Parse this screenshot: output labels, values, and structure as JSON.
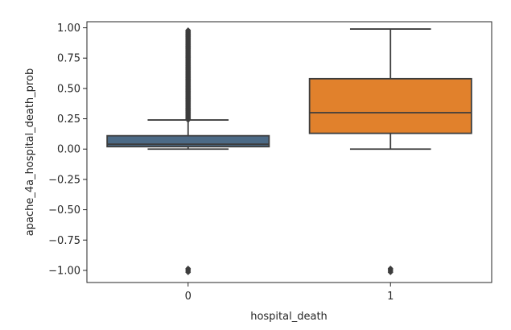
{
  "chart_data": {
    "type": "box",
    "title": "",
    "xlabel": "hospital_death",
    "ylabel": "apache_4a_hospital_death_prob",
    "categories": [
      "0",
      "1"
    ],
    "ylim": [
      -1.1,
      1.05
    ],
    "yticks": [
      -1.0,
      -0.75,
      -0.5,
      -0.25,
      0.0,
      0.25,
      0.5,
      0.75,
      1.0
    ],
    "ytick_labels": [
      "−1.00",
      "−0.75",
      "−0.50",
      "−0.25",
      "0.00",
      "0.25",
      "0.50",
      "0.75",
      "1.00"
    ],
    "grid": false,
    "boxes": [
      {
        "category": "0",
        "color": "#4c6a86",
        "whisker_low": 0.0,
        "q1": 0.02,
        "median": 0.04,
        "q3": 0.11,
        "whisker_high": 0.24,
        "outliers_range": [
          0.24,
          0.98
        ],
        "outliers_extra": [
          -1.0
        ]
      },
      {
        "category": "1",
        "color": "#e1812c",
        "whisker_low": 0.0,
        "q1": 0.13,
        "median": 0.3,
        "q3": 0.58,
        "whisker_high": 0.99,
        "outliers_range": null,
        "outliers_extra": [
          -1.0
        ]
      }
    ]
  }
}
